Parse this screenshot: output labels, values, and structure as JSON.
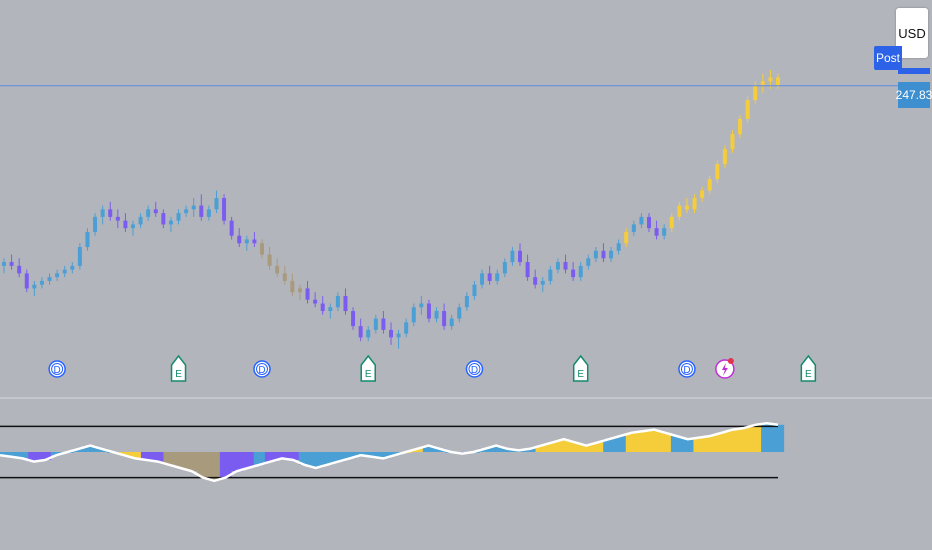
{
  "toolbar": {
    "currency_label": "USD",
    "session_label": "Post",
    "last_price_label": "247.83"
  },
  "colors": {
    "background": "#b3b5bd",
    "bull_bar": "#4a9fd4",
    "bear_bar": "#7b5cf0",
    "strong_bar": "#f5cd3a",
    "neutral_bar": "#a89a7c",
    "price_line": "#5c8be0",
    "osc_line": "#ffffff",
    "osc_bound": "#111111",
    "dividend_marker": "#2962ff",
    "earnings_marker": "#148a6c",
    "split_marker": "#c02fd6"
  },
  "chart_data": {
    "type": "candlestick",
    "last_price": 247.83,
    "price_range": [
      175,
      252
    ],
    "bars": [
      {
        "o": 200,
        "h": 202,
        "l": 198,
        "c": 201
      },
      {
        "o": 201,
        "h": 203,
        "l": 199,
        "c": 200
      },
      {
        "o": 200,
        "h": 202,
        "l": 197,
        "c": 198
      },
      {
        "o": 198,
        "h": 199,
        "l": 193,
        "c": 194
      },
      {
        "o": 194,
        "h": 196,
        "l": 192,
        "c": 195
      },
      {
        "o": 195,
        "h": 197,
        "l": 194,
        "c": 196
      },
      {
        "o": 196,
        "h": 198,
        "l": 195,
        "c": 197
      },
      {
        "o": 197,
        "h": 199,
        "l": 196,
        "c": 198
      },
      {
        "o": 198,
        "h": 200,
        "l": 197,
        "c": 199
      },
      {
        "o": 199,
        "h": 201,
        "l": 198,
        "c": 200
      },
      {
        "o": 200,
        "h": 206,
        "l": 199,
        "c": 205
      },
      {
        "o": 205,
        "h": 210,
        "l": 204,
        "c": 209
      },
      {
        "o": 209,
        "h": 214,
        "l": 208,
        "c": 213
      },
      {
        "o": 213,
        "h": 216,
        "l": 211,
        "c": 215
      },
      {
        "o": 215,
        "h": 217,
        "l": 212,
        "c": 213
      },
      {
        "o": 213,
        "h": 215,
        "l": 210,
        "c": 212
      },
      {
        "o": 212,
        "h": 214,
        "l": 209,
        "c": 210
      },
      {
        "o": 210,
        "h": 212,
        "l": 208,
        "c": 211
      },
      {
        "o": 211,
        "h": 214,
        "l": 210,
        "c": 213
      },
      {
        "o": 213,
        "h": 216,
        "l": 212,
        "c": 215
      },
      {
        "o": 215,
        "h": 217,
        "l": 213,
        "c": 214
      },
      {
        "o": 214,
        "h": 215,
        "l": 210,
        "c": 211
      },
      {
        "o": 211,
        "h": 213,
        "l": 209,
        "c": 212
      },
      {
        "o": 212,
        "h": 215,
        "l": 211,
        "c": 214
      },
      {
        "o": 214,
        "h": 216,
        "l": 213,
        "c": 215
      },
      {
        "o": 215,
        "h": 218,
        "l": 213,
        "c": 216
      },
      {
        "o": 216,
        "h": 219,
        "l": 212,
        "c": 213
      },
      {
        "o": 213,
        "h": 216,
        "l": 212,
        "c": 215
      },
      {
        "o": 215,
        "h": 220,
        "l": 214,
        "c": 218
      },
      {
        "o": 218,
        "h": 219,
        "l": 211,
        "c": 212
      },
      {
        "o": 212,
        "h": 213,
        "l": 207,
        "c": 208
      },
      {
        "o": 208,
        "h": 210,
        "l": 205,
        "c": 206
      },
      {
        "o": 206,
        "h": 208,
        "l": 204,
        "c": 207
      },
      {
        "o": 207,
        "h": 209,
        "l": 205,
        "c": 206
      },
      {
        "o": 206,
        "h": 207,
        "l": 202,
        "c": 203
      },
      {
        "o": 203,
        "h": 205,
        "l": 199,
        "c": 200
      },
      {
        "o": 200,
        "h": 202,
        "l": 197,
        "c": 198
      },
      {
        "o": 198,
        "h": 200,
        "l": 195,
        "c": 196
      },
      {
        "o": 196,
        "h": 198,
        "l": 192,
        "c": 193
      },
      {
        "o": 193,
        "h": 195,
        "l": 191,
        "c": 194
      },
      {
        "o": 194,
        "h": 196,
        "l": 190,
        "c": 191
      },
      {
        "o": 191,
        "h": 193,
        "l": 189,
        "c": 190
      },
      {
        "o": 190,
        "h": 192,
        "l": 187,
        "c": 188
      },
      {
        "o": 188,
        "h": 190,
        "l": 186,
        "c": 189
      },
      {
        "o": 189,
        "h": 193,
        "l": 188,
        "c": 192
      },
      {
        "o": 192,
        "h": 194,
        "l": 187,
        "c": 188
      },
      {
        "o": 188,
        "h": 189,
        "l": 183,
        "c": 184
      },
      {
        "o": 184,
        "h": 186,
        "l": 180,
        "c": 181
      },
      {
        "o": 181,
        "h": 184,
        "l": 180,
        "c": 183
      },
      {
        "o": 183,
        "h": 187,
        "l": 182,
        "c": 186
      },
      {
        "o": 186,
        "h": 188,
        "l": 182,
        "c": 183
      },
      {
        "o": 183,
        "h": 185,
        "l": 179,
        "c": 181
      },
      {
        "o": 181,
        "h": 183,
        "l": 178,
        "c": 182
      },
      {
        "o": 182,
        "h": 186,
        "l": 181,
        "c": 185
      },
      {
        "o": 185,
        "h": 190,
        "l": 184,
        "c": 189
      },
      {
        "o": 189,
        "h": 192,
        "l": 187,
        "c": 190
      },
      {
        "o": 190,
        "h": 191,
        "l": 185,
        "c": 186
      },
      {
        "o": 186,
        "h": 189,
        "l": 185,
        "c": 188
      },
      {
        "o": 188,
        "h": 190,
        "l": 183,
        "c": 184
      },
      {
        "o": 184,
        "h": 187,
        "l": 183,
        "c": 186
      },
      {
        "o": 186,
        "h": 190,
        "l": 185,
        "c": 189
      },
      {
        "o": 189,
        "h": 193,
        "l": 188,
        "c": 192
      },
      {
        "o": 192,
        "h": 196,
        "l": 191,
        "c": 195
      },
      {
        "o": 195,
        "h": 199,
        "l": 194,
        "c": 198
      },
      {
        "o": 198,
        "h": 200,
        "l": 195,
        "c": 196
      },
      {
        "o": 196,
        "h": 199,
        "l": 195,
        "c": 198
      },
      {
        "o": 198,
        "h": 202,
        "l": 197,
        "c": 201
      },
      {
        "o": 201,
        "h": 205,
        "l": 200,
        "c": 204
      },
      {
        "o": 204,
        "h": 206,
        "l": 200,
        "c": 201
      },
      {
        "o": 201,
        "h": 203,
        "l": 196,
        "c": 197
      },
      {
        "o": 197,
        "h": 199,
        "l": 194,
        "c": 195
      },
      {
        "o": 195,
        "h": 197,
        "l": 193,
        "c": 196
      },
      {
        "o": 196,
        "h": 200,
        "l": 195,
        "c": 199
      },
      {
        "o": 199,
        "h": 202,
        "l": 198,
        "c": 201
      },
      {
        "o": 201,
        "h": 203,
        "l": 198,
        "c": 199
      },
      {
        "o": 199,
        "h": 201,
        "l": 196,
        "c": 197
      },
      {
        "o": 197,
        "h": 201,
        "l": 196,
        "c": 200
      },
      {
        "o": 200,
        "h": 203,
        "l": 199,
        "c": 202
      },
      {
        "o": 202,
        "h": 205,
        "l": 201,
        "c": 204
      },
      {
        "o": 204,
        "h": 206,
        "l": 201,
        "c": 202
      },
      {
        "o": 202,
        "h": 205,
        "l": 201,
        "c": 204
      },
      {
        "o": 204,
        "h": 207,
        "l": 203,
        "c": 206
      },
      {
        "o": 206,
        "h": 210,
        "l": 205,
        "c": 209
      },
      {
        "o": 209,
        "h": 212,
        "l": 208,
        "c": 211
      },
      {
        "o": 211,
        "h": 214,
        "l": 210,
        "c": 213
      },
      {
        "o": 213,
        "h": 214,
        "l": 209,
        "c": 210
      },
      {
        "o": 210,
        "h": 212,
        "l": 207,
        "c": 208
      },
      {
        "o": 208,
        "h": 211,
        "l": 207,
        "c": 210
      },
      {
        "o": 210,
        "h": 214,
        "l": 209,
        "c": 213
      },
      {
        "o": 213,
        "h": 217,
        "l": 212,
        "c": 216
      },
      {
        "o": 216,
        "h": 218,
        "l": 214,
        "c": 215
      },
      {
        "o": 215,
        "h": 219,
        "l": 214,
        "c": 218
      },
      {
        "o": 218,
        "h": 221,
        "l": 217,
        "c": 220
      },
      {
        "o": 220,
        "h": 224,
        "l": 219,
        "c": 223
      },
      {
        "o": 223,
        "h": 228,
        "l": 222,
        "c": 227
      },
      {
        "o": 227,
        "h": 232,
        "l": 226,
        "c": 231
      },
      {
        "o": 231,
        "h": 236,
        "l": 230,
        "c": 235
      },
      {
        "o": 235,
        "h": 240,
        "l": 234,
        "c": 239
      },
      {
        "o": 239,
        "h": 245,
        "l": 238,
        "c": 244
      },
      {
        "o": 244,
        "h": 249,
        "l": 243,
        "c": 248
      },
      {
        "o": 248,
        "h": 251,
        "l": 246,
        "c": 249
      },
      {
        "o": 249,
        "h": 252,
        "l": 247,
        "c": 250
      },
      {
        "o": 250,
        "h": 251,
        "l": 247,
        "c": 247.83
      }
    ],
    "oscillator": {
      "range": [
        -10,
        10
      ],
      "upper_band": 8,
      "lower_band": -8,
      "line": [
        -1,
        -1.5,
        -2,
        -3,
        -2.5,
        -1,
        0,
        1,
        2,
        1,
        0,
        -1,
        -2,
        -2.5,
        -3,
        -4,
        -5,
        -6,
        -8,
        -9,
        -8,
        -6,
        -5,
        -4,
        -3,
        -2,
        -2.5,
        -4,
        -5,
        -4,
        -3,
        -2,
        -1,
        -1.5,
        -2,
        -1,
        0,
        1,
        2,
        1,
        0,
        -0.5,
        0,
        1,
        2,
        1,
        0.5,
        1,
        2,
        3,
        4,
        3,
        2,
        3,
        4,
        5,
        6,
        6.5,
        7,
        6,
        5,
        4,
        4.5,
        5,
        6,
        7,
        7.5,
        8.5,
        9,
        8.5
      ],
      "bar_colors": [
        "bull",
        "bull",
        "bull",
        "bear",
        "bear",
        "bull",
        "bull",
        "bull",
        "bull",
        "bull",
        "bull",
        "strong",
        "strong",
        "bear",
        "bear",
        "neutral",
        "neutral",
        "neutral",
        "neutral",
        "neutral",
        "bear",
        "bear",
        "bear",
        "bull",
        "bear",
        "bear",
        "bear",
        "bull",
        "bull",
        "bull",
        "bull",
        "bull",
        "bull",
        "bull",
        "bull",
        "bull",
        "strong",
        "strong",
        "bull",
        "bull",
        "bull",
        "bear",
        "bull",
        "bull",
        "bull",
        "bull",
        "bull",
        "bull",
        "strong",
        "strong",
        "strong",
        "strong",
        "strong",
        "strong",
        "bull",
        "bull",
        "strong",
        "strong",
        "strong",
        "strong",
        "bull",
        "bull",
        "strong",
        "strong",
        "strong",
        "strong",
        "strong",
        "strong",
        "bull",
        "bull"
      ]
    },
    "events": [
      {
        "type": "dividend",
        "label": "D",
        "bar": 7
      },
      {
        "type": "earnings",
        "label": "E",
        "bar": 23
      },
      {
        "type": "dividend",
        "label": "D",
        "bar": 34
      },
      {
        "type": "earnings",
        "label": "E",
        "bar": 48
      },
      {
        "type": "dividend",
        "label": "D",
        "bar": 62
      },
      {
        "type": "earnings",
        "label": "E",
        "bar": 76
      },
      {
        "type": "dividend",
        "label": "D",
        "bar": 90
      },
      {
        "type": "split",
        "label": "",
        "bar": 95
      },
      {
        "type": "earnings",
        "label": "E",
        "bar": 106
      }
    ]
  }
}
